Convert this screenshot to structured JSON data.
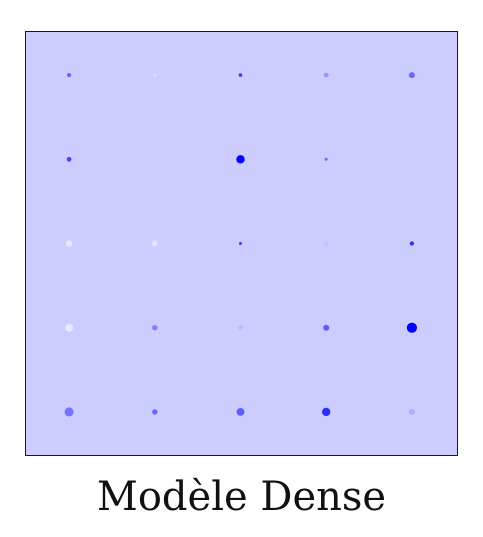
{
  "caption": "Modèle Dense",
  "colors": {
    "panel_background": "#ccccfe",
    "panel_border": "#1a1a1a",
    "dot_base": "#0000ff"
  },
  "grid": {
    "rows": 5,
    "cols": 5,
    "dots": [
      [
        {
          "size": 0.35,
          "intensity": 0.55
        },
        {
          "size": 0.25,
          "intensity": 0.05
        },
        {
          "size": 0.3,
          "intensity": 0.75
        },
        {
          "size": 0.4,
          "intensity": 0.35
        },
        {
          "size": 0.5,
          "intensity": 0.55
        }
      ],
      [
        {
          "size": 0.4,
          "intensity": 0.7
        },
        {
          "size": 0.2,
          "intensity": 0.1
        },
        {
          "size": 0.7,
          "intensity": 1.0
        },
        {
          "size": 0.25,
          "intensity": 0.55
        },
        {
          "size": 0.0,
          "intensity": 0.0
        }
      ],
      [
        {
          "size": 0.55,
          "intensity": 0.0
        },
        {
          "size": 0.5,
          "intensity": 0.02
        },
        {
          "size": 0.25,
          "intensity": 0.75
        },
        {
          "size": 0.45,
          "intensity": 0.15
        },
        {
          "size": 0.35,
          "intensity": 0.8
        }
      ],
      [
        {
          "size": 0.65,
          "intensity": 0.0
        },
        {
          "size": 0.45,
          "intensity": 0.45
        },
        {
          "size": 0.4,
          "intensity": 0.2
        },
        {
          "size": 0.5,
          "intensity": 0.6
        },
        {
          "size": 0.85,
          "intensity": 1.0
        }
      ],
      [
        {
          "size": 0.75,
          "intensity": 0.5
        },
        {
          "size": 0.45,
          "intensity": 0.55
        },
        {
          "size": 0.65,
          "intensity": 0.6
        },
        {
          "size": 0.7,
          "intensity": 0.8
        },
        {
          "size": 0.5,
          "intensity": 0.25
        }
      ]
    ]
  }
}
